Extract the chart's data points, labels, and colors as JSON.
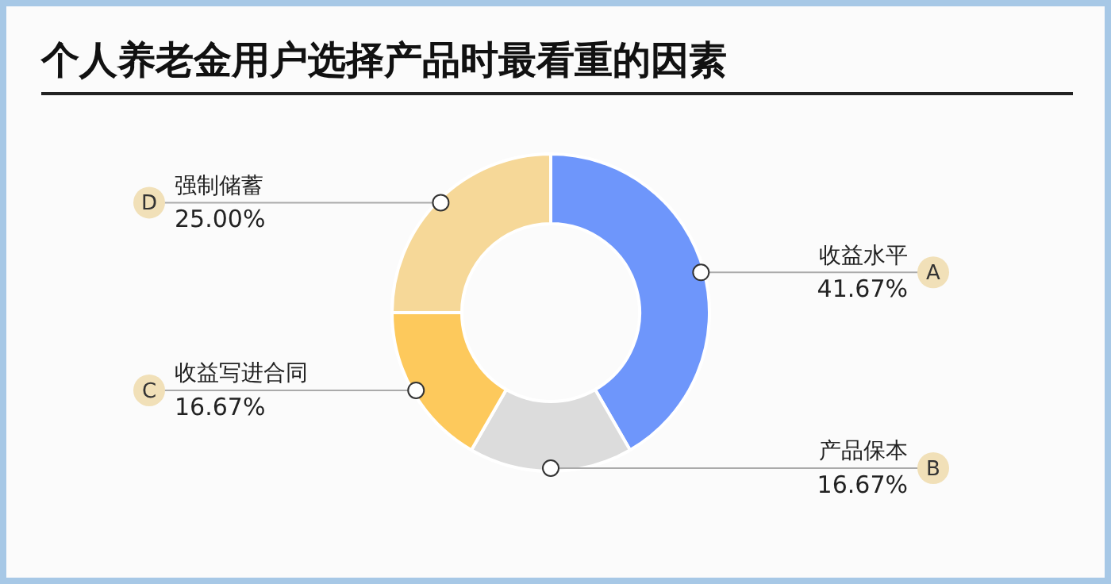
{
  "chart_data": {
    "type": "donut",
    "title": "个人养老金用户选择产品时最看重的因素",
    "categories": [
      "收益水平",
      "产品保本",
      "收益写进合同",
      "强制储蓄"
    ],
    "values": [
      41.67,
      16.67,
      16.67,
      25.0
    ],
    "value_labels": [
      "41.67%",
      "16.67%",
      "16.67%",
      "25.00%"
    ],
    "colors": [
      "#6e96fb",
      "#dcdcdc",
      "#fdc95c",
      "#f6d898"
    ],
    "annotations": [
      "A",
      "B",
      "C",
      "D"
    ],
    "legend": false
  }
}
